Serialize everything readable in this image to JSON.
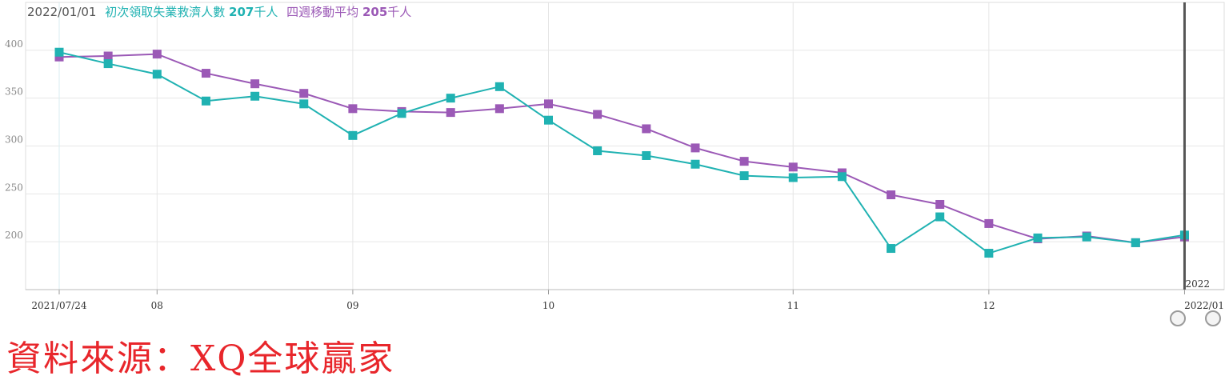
{
  "header": {
    "date": "2022/01/01",
    "series1_label": "初次領取失業救濟人數",
    "series1_value": "207",
    "series1_unit": "千人",
    "series2_label": "四週移動平均",
    "series2_value": "205",
    "series2_unit": "千人"
  },
  "source_text": "資料來源：XQ全球贏家",
  "cursor_label": "2022",
  "colors": {
    "series1": "#20b2b2",
    "series2": "#9b59b6",
    "grid": "#e6e6e6",
    "cursor": "#555555"
  },
  "chart_data": {
    "type": "line",
    "title": "",
    "xlabel": "",
    "ylabel": "",
    "ylim": [
      150,
      450
    ],
    "yticks": [
      200,
      250,
      300,
      350,
      400
    ],
    "grid": true,
    "x_tick_labels": [
      "2021/07/24",
      "08",
      "09",
      "10",
      "11",
      "12",
      "2022/01"
    ],
    "x_tick_indices": [
      0,
      2,
      6,
      10,
      15,
      19,
      23
    ],
    "x": [
      "2021/07/24",
      "2021/07/31",
      "2021/08/07",
      "2021/08/14",
      "2021/08/21",
      "2021/08/28",
      "2021/09/04",
      "2021/09/11",
      "2021/09/18",
      "2021/09/25",
      "2021/10/02",
      "2021/10/09",
      "2021/10/16",
      "2021/10/23",
      "2021/10/30",
      "2021/11/06",
      "2021/11/13",
      "2021/11/20",
      "2021/11/27",
      "2021/12/04",
      "2021/12/11",
      "2021/12/18",
      "2021/12/25",
      "2022/01/01"
    ],
    "series": [
      {
        "name": "初次領取失業救濟人數",
        "color": "#20b2b2",
        "values": [
          398,
          386,
          375,
          347,
          352,
          344,
          311,
          334,
          350,
          362,
          327,
          295,
          290,
          281,
          269,
          267,
          268,
          193,
          226,
          188,
          204,
          205,
          199,
          207
        ]
      },
      {
        "name": "四週移動平均",
        "color": "#9b59b6",
        "values": [
          393,
          394,
          396,
          376,
          365,
          355,
          339,
          336,
          335,
          339,
          344,
          333,
          318,
          298,
          284,
          278,
          272,
          249,
          239,
          219,
          203,
          206,
          199,
          205
        ]
      }
    ]
  }
}
